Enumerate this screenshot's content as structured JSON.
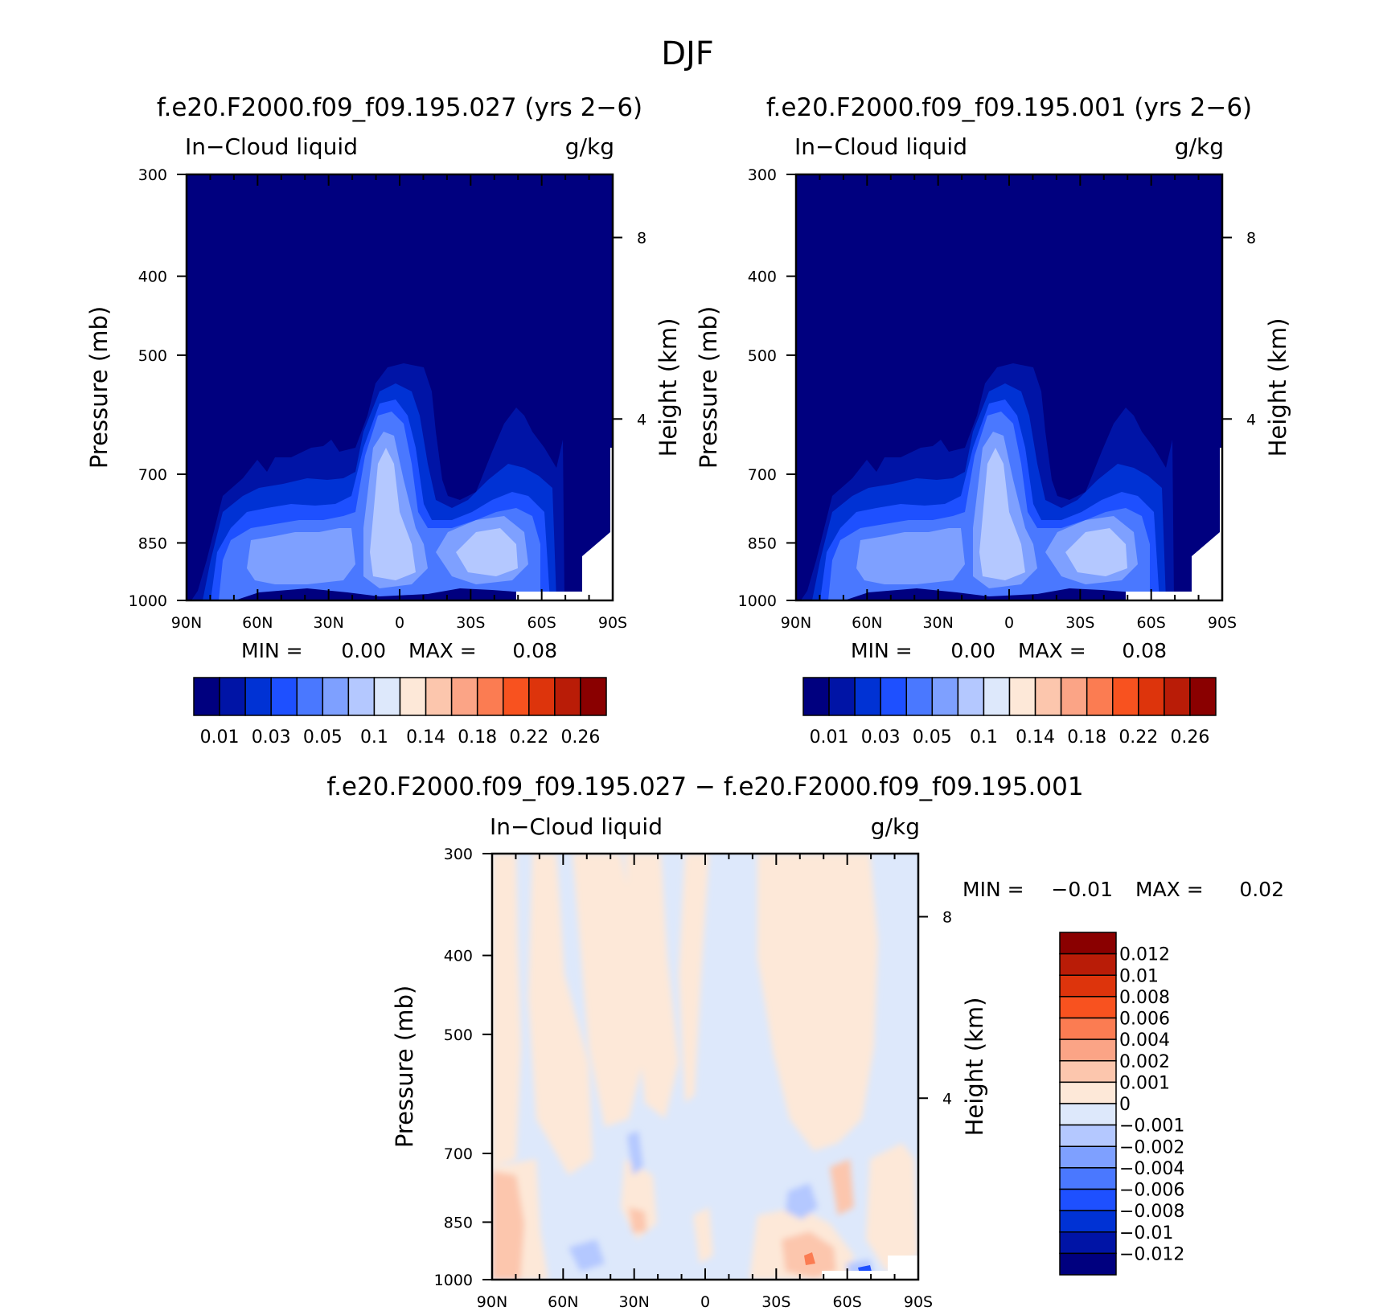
{
  "figure": {
    "title": "DJF"
  },
  "panels": [
    {
      "id": "left",
      "title": "f.e20.F2000.f09_f09.195.027 (yrs 2−6)",
      "left_string": "In−Cloud liquid",
      "right_string": "g/kg",
      "ylabel": "Pressure (mb)",
      "ylabel_right": "Height (km)",
      "min_label": "MIN =",
      "min_value": "0.00",
      "max_label": "MAX =",
      "max_value": "0.08"
    },
    {
      "id": "right",
      "title": "f.e20.F2000.f09_f09.195.001 (yrs 2−6)",
      "left_string": "In−Cloud liquid",
      "right_string": "g/kg",
      "ylabel": "Pressure (mb)",
      "ylabel_right": "Height (km)",
      "min_label": "MIN =",
      "min_value": "0.00",
      "max_label": "MAX =",
      "max_value": "0.08"
    },
    {
      "id": "diff",
      "title": "f.e20.F2000.f09_f09.195.027 − f.e20.F2000.f09_f09.195.001",
      "left_string": "In−Cloud liquid",
      "right_string": "g/kg",
      "ylabel": "Pressure (mb)",
      "ylabel_right": "Height (km)",
      "min_label": "MIN =",
      "min_value": "−0.01",
      "max_label": "MAX =",
      "max_value": "0.02"
    }
  ],
  "colorbar_top": {
    "colors": [
      "#00007f",
      "#0014a6",
      "#0032d4",
      "#1e50ff",
      "#4a78ff",
      "#7ea0ff",
      "#b4c8ff",
      "#dde8fb",
      "#fde8d8",
      "#fcc6ad",
      "#fba486",
      "#fb7c52",
      "#f8521f",
      "#dd340c",
      "#b91c07",
      "#8a0000"
    ],
    "labels": [
      "0.01",
      "0.03",
      "0.05",
      "0.1",
      "0.14",
      "0.18",
      "0.22",
      "0.26"
    ]
  },
  "colorbar_diff": {
    "colors": [
      "#00007f",
      "#0014a6",
      "#0032d4",
      "#1e50ff",
      "#4a78ff",
      "#7ea0ff",
      "#b4c8ff",
      "#dde8fb",
      "#fde8d8",
      "#fcc6ad",
      "#fba486",
      "#fb7c52",
      "#f8521f",
      "#dd340c",
      "#b91c07",
      "#8a0000"
    ],
    "labels": [
      "0.012",
      "0.01",
      "0.008",
      "0.006",
      "0.004",
      "0.002",
      "0.001",
      "0",
      "−0.001",
      "−0.002",
      "−0.004",
      "−0.006",
      "−0.008",
      "−0.01",
      "−0.012"
    ]
  },
  "chart_data": [
    {
      "type": "heatmap",
      "title": "f.e20.F2000.f09_f09.195.027 (yrs 2−6)",
      "field": "In−Cloud liquid",
      "units": "g/kg",
      "xlabel": "",
      "ylabel": "Pressure (mb)",
      "ylabel_right": "Height (km)",
      "x_ticks": [
        "90N",
        "60N",
        "30N",
        "0",
        "30S",
        "60S",
        "90S"
      ],
      "y_ticks": [
        300,
        400,
        500,
        700,
        850,
        1000
      ],
      "right_ticks": [
        8,
        4
      ],
      "xlim": [
        90,
        -90
      ],
      "ylim": [
        1000,
        300
      ],
      "y_scale": "log",
      "min": 0.0,
      "max": 0.08
    },
    {
      "type": "heatmap",
      "title": "f.e20.F2000.f09_f09.195.001 (yrs 2−6)",
      "field": "In−Cloud liquid",
      "units": "g/kg",
      "xlabel": "",
      "ylabel": "Pressure (mb)",
      "ylabel_right": "Height (km)",
      "x_ticks": [
        "90N",
        "60N",
        "30N",
        "0",
        "30S",
        "60S",
        "90S"
      ],
      "y_ticks": [
        300,
        400,
        500,
        700,
        850,
        1000
      ],
      "right_ticks": [
        8,
        4
      ],
      "xlim": [
        90,
        -90
      ],
      "ylim": [
        1000,
        300
      ],
      "y_scale": "log",
      "min": 0.0,
      "max": 0.08
    },
    {
      "type": "heatmap",
      "title": "f.e20.F2000.f09_f09.195.027 − f.e20.F2000.f09_f09.195.001",
      "field": "In−Cloud liquid",
      "units": "g/kg",
      "xlabel": "",
      "ylabel": "Pressure (mb)",
      "ylabel_right": "Height (km)",
      "x_ticks": [
        "90N",
        "60N",
        "30N",
        "0",
        "30S",
        "60S",
        "90S"
      ],
      "y_ticks": [
        300,
        400,
        500,
        700,
        850,
        1000
      ],
      "right_ticks": [
        8,
        4
      ],
      "xlim": [
        90,
        -90
      ],
      "ylim": [
        1000,
        300
      ],
      "y_scale": "log",
      "min": -0.01,
      "max": 0.02
    }
  ]
}
